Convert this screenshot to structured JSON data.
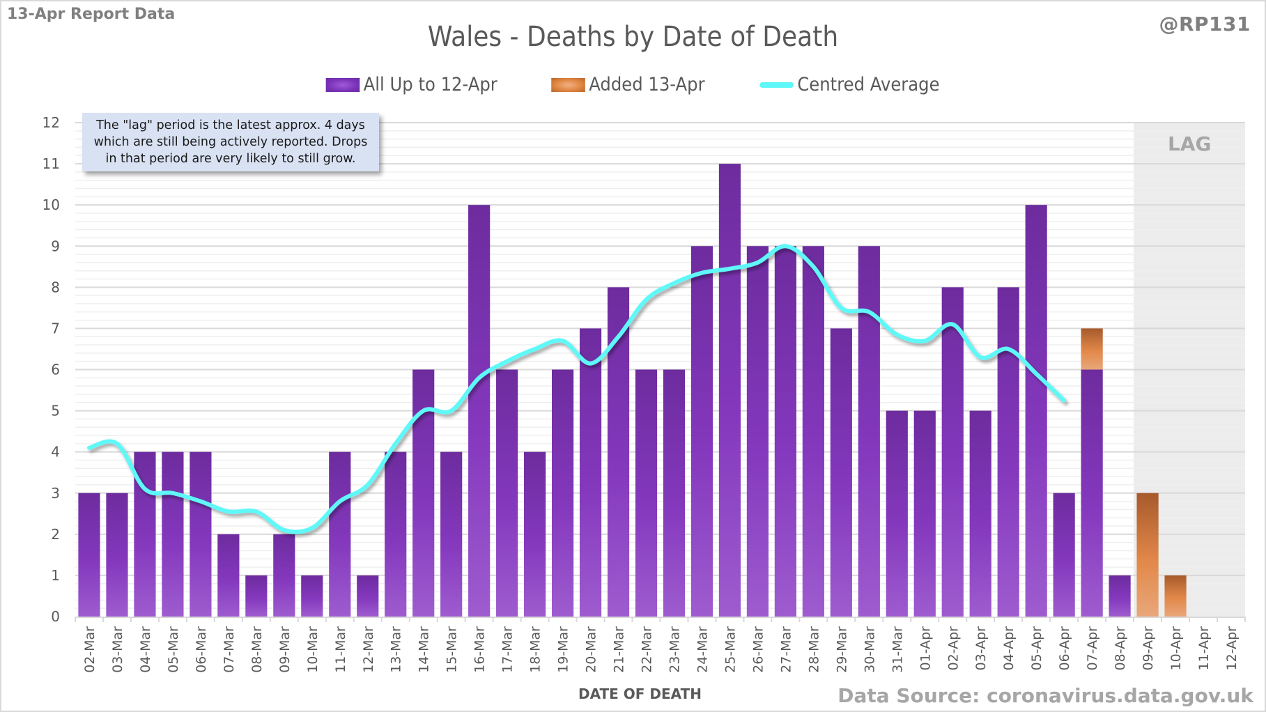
{
  "header": {
    "report_label": "13-Apr Report Data",
    "handle": "@RP131",
    "source": "Data Source: coronavirus.data.gov.uk"
  },
  "annotation": {
    "text": "The \"lag\" period is the latest approx. 4 days which are still being actively reported.  Drops in that period are very likely to still grow."
  },
  "colors": {
    "primary_bar": "#7a32b8",
    "added_bar": "#e08642",
    "average_line": "#5ef8f8",
    "lag_shade": "#ececec"
  },
  "chart_data": {
    "type": "bar",
    "stacked": true,
    "title": "Wales - Deaths by Date of Death",
    "xlabel": "DATE OF DEATH",
    "ylabel": "",
    "ylim": [
      0,
      12
    ],
    "yticks": [
      0,
      1,
      2,
      3,
      4,
      5,
      6,
      7,
      8,
      9,
      10,
      11,
      12
    ],
    "grid": true,
    "legend_position": "top-center",
    "lag_region": {
      "label": "LAG",
      "from": "09-Apr",
      "to": "12-Apr"
    },
    "categories": [
      "02-Mar",
      "03-Mar",
      "04-Mar",
      "05-Mar",
      "06-Mar",
      "07-Mar",
      "08-Mar",
      "09-Mar",
      "10-Mar",
      "11-Mar",
      "12-Mar",
      "13-Mar",
      "14-Mar",
      "15-Mar",
      "16-Mar",
      "17-Mar",
      "18-Mar",
      "19-Mar",
      "20-Mar",
      "21-Mar",
      "22-Mar",
      "23-Mar",
      "24-Mar",
      "25-Mar",
      "26-Mar",
      "27-Mar",
      "28-Mar",
      "29-Mar",
      "30-Mar",
      "31-Mar",
      "01-Apr",
      "02-Apr",
      "03-Apr",
      "04-Apr",
      "05-Apr",
      "06-Apr",
      "07-Apr",
      "08-Apr",
      "09-Apr",
      "10-Apr",
      "11-Apr",
      "12-Apr"
    ],
    "series": [
      {
        "name": "All Up to 12-Apr",
        "type": "bar",
        "values": [
          3,
          3,
          4,
          4,
          4,
          2,
          1,
          2,
          1,
          4,
          1,
          4,
          6,
          4,
          10,
          6,
          4,
          6,
          7,
          8,
          6,
          6,
          9,
          11,
          9,
          9,
          9,
          7,
          9,
          5,
          5,
          8,
          5,
          8,
          10,
          3,
          6,
          1,
          0,
          0,
          0,
          0
        ]
      },
      {
        "name": "Added 13-Apr",
        "type": "bar",
        "values": [
          0,
          0,
          0,
          0,
          0,
          0,
          0,
          0,
          0,
          0,
          0,
          0,
          0,
          0,
          0,
          0,
          0,
          0,
          0,
          0,
          0,
          0,
          0,
          0,
          0,
          0,
          0,
          0,
          0,
          0,
          0,
          0,
          0,
          0,
          0,
          0,
          1,
          0,
          3,
          1,
          0,
          0
        ]
      },
      {
        "name": "Centred Average",
        "type": "line",
        "values": [
          4.1,
          4.2,
          3.1,
          3.0,
          2.8,
          2.55,
          2.55,
          2.1,
          2.15,
          2.8,
          3.2,
          4.2,
          5.0,
          5.0,
          5.8,
          6.2,
          6.5,
          6.7,
          6.15,
          6.8,
          7.7,
          8.1,
          8.35,
          8.45,
          8.6,
          9.0,
          8.5,
          7.5,
          7.4,
          6.85,
          6.7,
          7.1,
          6.3,
          6.5,
          5.9,
          5.25,
          null,
          null,
          null,
          null,
          null,
          null
        ]
      }
    ]
  }
}
